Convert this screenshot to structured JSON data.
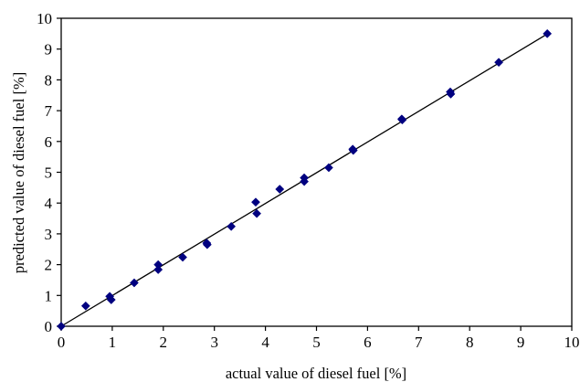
{
  "colors": {
    "marker": "#000080",
    "line": "#000000",
    "axis": "#000000"
  },
  "chart_data": {
    "type": "scatter",
    "title": "",
    "xlabel": "actual value of diesel fuel [%]",
    "ylabel": "predicted value of diesel fuel [%]",
    "xlim": [
      0,
      10
    ],
    "ylim": [
      0,
      10
    ],
    "xticks": [
      "0",
      "1",
      "2",
      "3",
      "4",
      "5",
      "6",
      "7",
      "8",
      "9",
      "10"
    ],
    "yticks": [
      "0",
      "1",
      "2",
      "3",
      "4",
      "5",
      "6",
      "7",
      "8",
      "9",
      "10"
    ],
    "grid": false,
    "legend": "none",
    "series": [
      {
        "marker": "diamond",
        "points": [
          [
            0,
            0
          ],
          [
            0.48,
            0.66
          ],
          [
            0.95,
            0.97
          ],
          [
            0.98,
            0.86
          ],
          [
            1.43,
            1.41
          ],
          [
            1.9,
            2.0
          ],
          [
            1.9,
            1.84
          ],
          [
            2.38,
            2.24
          ],
          [
            2.85,
            2.7
          ],
          [
            2.86,
            2.65
          ],
          [
            3.33,
            3.24
          ],
          [
            3.81,
            4.03
          ],
          [
            3.83,
            3.66
          ],
          [
            4.28,
            4.45
          ],
          [
            4.76,
            4.82
          ],
          [
            4.76,
            4.7
          ],
          [
            5.24,
            5.15
          ],
          [
            5.71,
            5.75
          ],
          [
            5.72,
            5.71
          ],
          [
            6.67,
            6.73
          ],
          [
            6.68,
            6.7
          ],
          [
            7.62,
            7.61
          ],
          [
            7.63,
            7.54
          ],
          [
            8.57,
            8.57
          ],
          [
            9.52,
            9.5
          ]
        ]
      }
    ],
    "fit_line": {
      "x": [
        0,
        9.55
      ],
      "y": [
        0,
        9.52
      ]
    }
  }
}
